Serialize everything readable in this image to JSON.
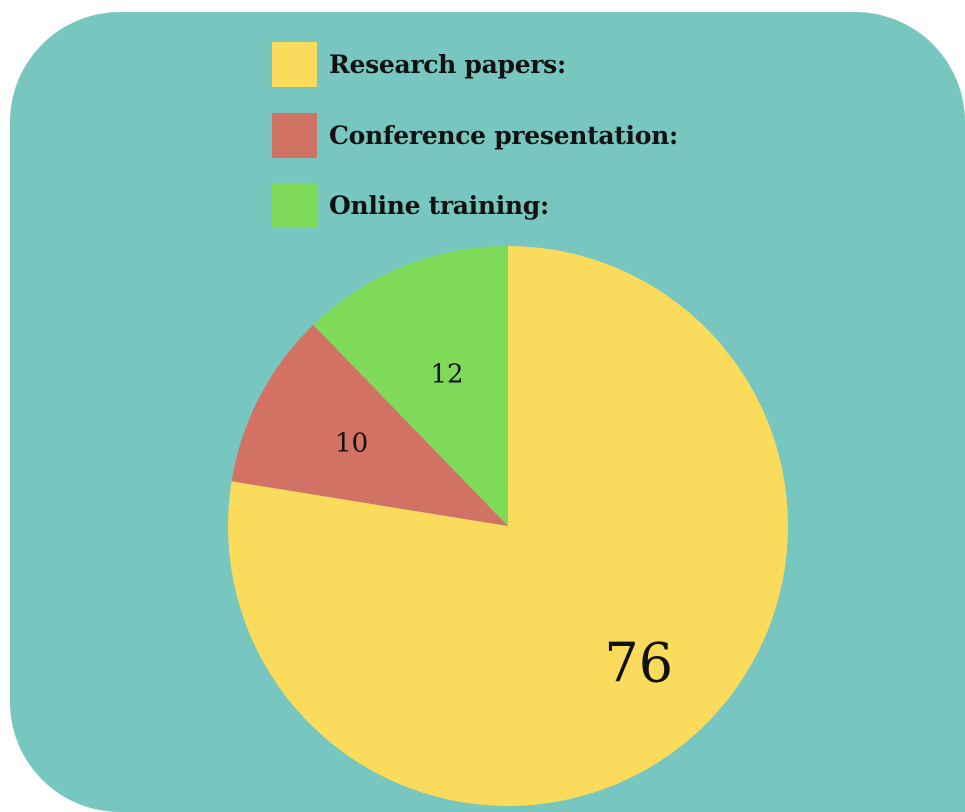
{
  "colors": {
    "panel_background": "#77C6BF",
    "research_papers": "#FBDB5C",
    "conference_presentation": "#D27264",
    "online_training": "#7FDA5A",
    "text": "#111111"
  },
  "legend": {
    "items": [
      {
        "label": "Research papers:",
        "color": "#FBDB5C"
      },
      {
        "label": "Conference presentation:",
        "color": "#D27264"
      },
      {
        "label": "Online training:",
        "color": "#7FDA5A"
      }
    ]
  },
  "chart_data": {
    "type": "pie",
    "title": "",
    "start": "12 o'clock",
    "direction": "clockwise",
    "slices": [
      {
        "label": "Research papers:",
        "value": 76,
        "value_label": "76",
        "color": "#FBDB5C"
      },
      {
        "label": "Conference presentation:",
        "value": 10,
        "value_label": "10",
        "color": "#D27264"
      },
      {
        "label": "Online training:",
        "value": 12,
        "value_label": "12",
        "color": "#7FDA5A"
      }
    ],
    "legend_position": "top"
  }
}
